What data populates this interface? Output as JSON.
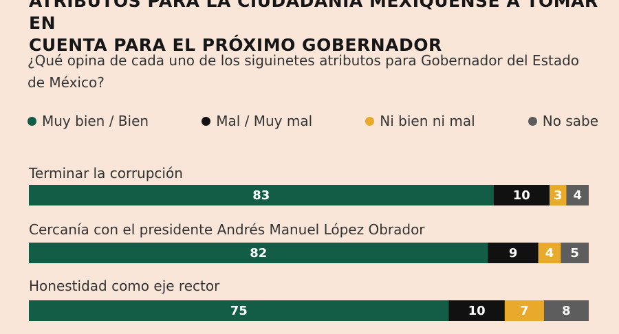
{
  "title_lines": [
    "ATRIBUTOS PARA LA CIUDADANÍA MEXIQUENSE A TOMAR EN",
    "CUENTA PARA EL PRÓXIMO GOBERNADOR"
  ],
  "question": "¿Qué opina de cada uno de los siguinetes atributos para Gobernador del Estado de México?",
  "colors": {
    "muy_bien": "#135c46",
    "mal": "#111111",
    "ni": "#e9a92b",
    "no_sabe": "#5d5d5d"
  },
  "chart_data": {
    "type": "bar",
    "orientation": "horizontal",
    "stacked": true,
    "categories": [
      "Terminar la corrupción",
      "Cercanía con el presidente Andrés Manuel López Obrador",
      "Honestidad como eje rector"
    ],
    "series": [
      {
        "name": "Muy bien / Bien",
        "values": [
          83,
          82,
          75
        ],
        "color": "#135c46"
      },
      {
        "name": "Mal / Muy mal",
        "values": [
          10,
          9,
          10
        ],
        "color": "#111111"
      },
      {
        "name": "Ni bien ni mal",
        "values": [
          3,
          4,
          7
        ],
        "color": "#e9a92b"
      },
      {
        "name": "No sabe",
        "values": [
          4,
          5,
          8
        ],
        "color": "#5d5d5d"
      }
    ],
    "xlim": [
      0,
      100
    ],
    "legend": "top",
    "grid": false
  }
}
